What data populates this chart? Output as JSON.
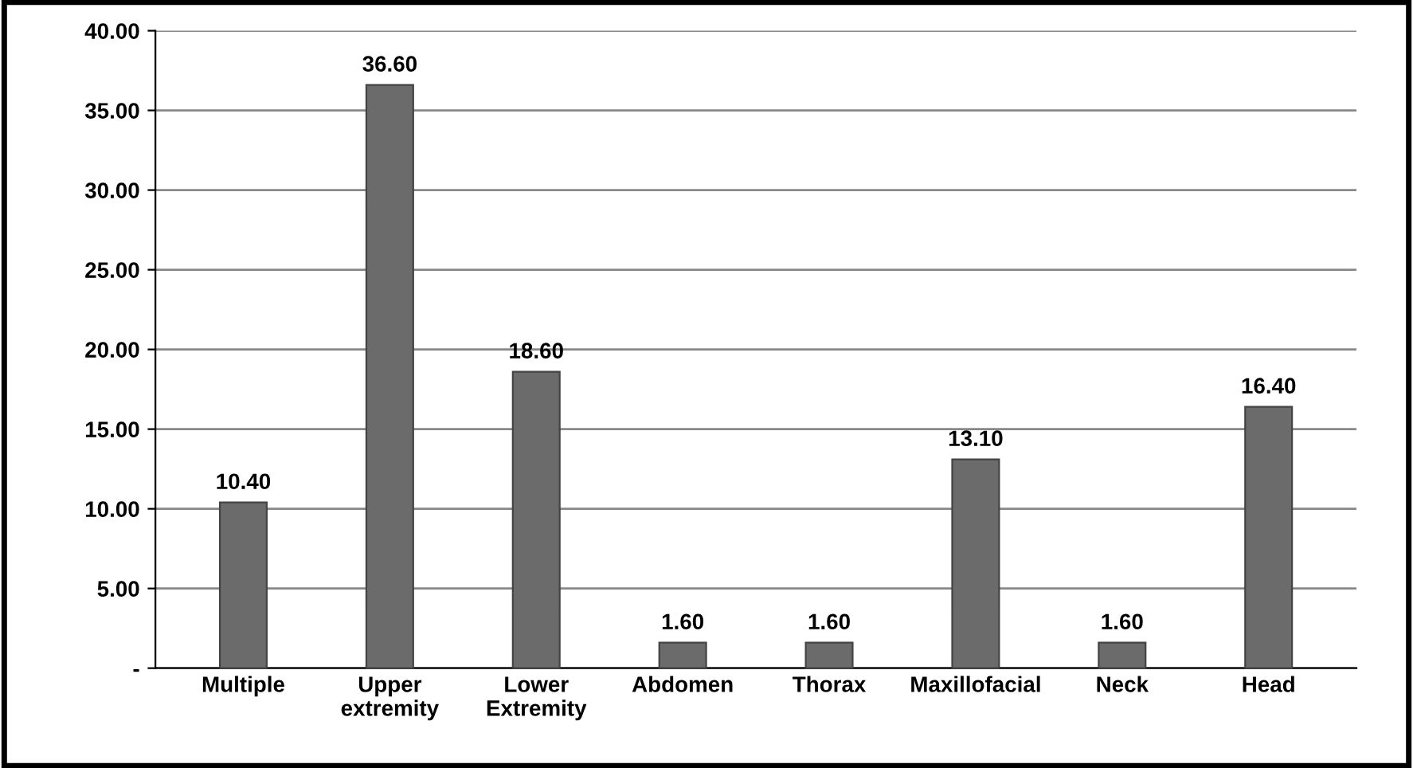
{
  "chart_data": {
    "type": "bar",
    "categories": [
      "Multiple",
      "Upper\nextremity",
      "Lower\nExtremity",
      "Abdomen",
      "Thorax",
      "Maxillofacial",
      "Neck",
      "Head"
    ],
    "values": [
      10.4,
      36.6,
      18.6,
      1.6,
      1.6,
      13.1,
      1.6,
      16.4
    ],
    "value_labels": [
      "10.40",
      "36.60",
      "18.60",
      "1.60",
      "1.60",
      "13.10",
      "1.60",
      "16.40"
    ],
    "color": "#6b6b6b",
    "ylim": [
      0,
      40
    ],
    "yticks": [
      {
        "value": 0,
        "label": "-"
      },
      {
        "value": 5,
        "label": "5.00"
      },
      {
        "value": 10,
        "label": "10.00"
      },
      {
        "value": 15,
        "label": "15.00"
      },
      {
        "value": 20,
        "label": "20.00"
      },
      {
        "value": 25,
        "label": "25.00"
      },
      {
        "value": 30,
        "label": "30.00"
      },
      {
        "value": 35,
        "label": "35.00"
      },
      {
        "value": 40,
        "label": "40.00"
      }
    ],
    "grid": "y"
  }
}
